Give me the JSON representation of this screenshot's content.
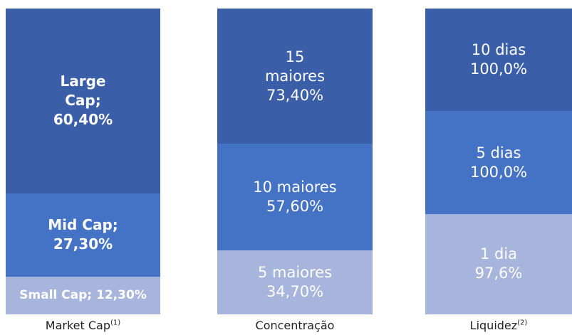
{
  "chart_data": {
    "type": "bar",
    "stacking": "percent",
    "colors": [
      "#3a5ea8",
      "#4472c4",
      "#a7b5dc"
    ],
    "columns": [
      {
        "name": "Market Cap",
        "note": "(1)",
        "segments": [
          {
            "name": "Large Cap;",
            "value": 60.4,
            "value_label": "60,40%"
          },
          {
            "name": "Mid Cap;",
            "value": 27.3,
            "value_label": "27,30%"
          },
          {
            "name": "Small Cap;",
            "value": 12.3,
            "value_label": "12,30%"
          }
        ]
      },
      {
        "name": "Concentração",
        "segments": [
          {
            "name": "15 maiores",
            "value": 73.4,
            "value_label": "73,40%"
          },
          {
            "name": "10 maiores",
            "value": 57.6,
            "value_label": "57,60%"
          },
          {
            "name": "5 maiores",
            "value": 34.7,
            "value_label": "34,70%"
          }
        ]
      },
      {
        "name": "Liquidez",
        "note": "(2)",
        "segments": [
          {
            "name": "10 dias",
            "value": 100,
            "value_label": "100,0%"
          },
          {
            "name": "5 dias",
            "value": 100,
            "value_label": "100,0%"
          },
          {
            "name": "1 dia",
            "value": 97.6,
            "value_label": "97,6%"
          }
        ]
      }
    ]
  }
}
